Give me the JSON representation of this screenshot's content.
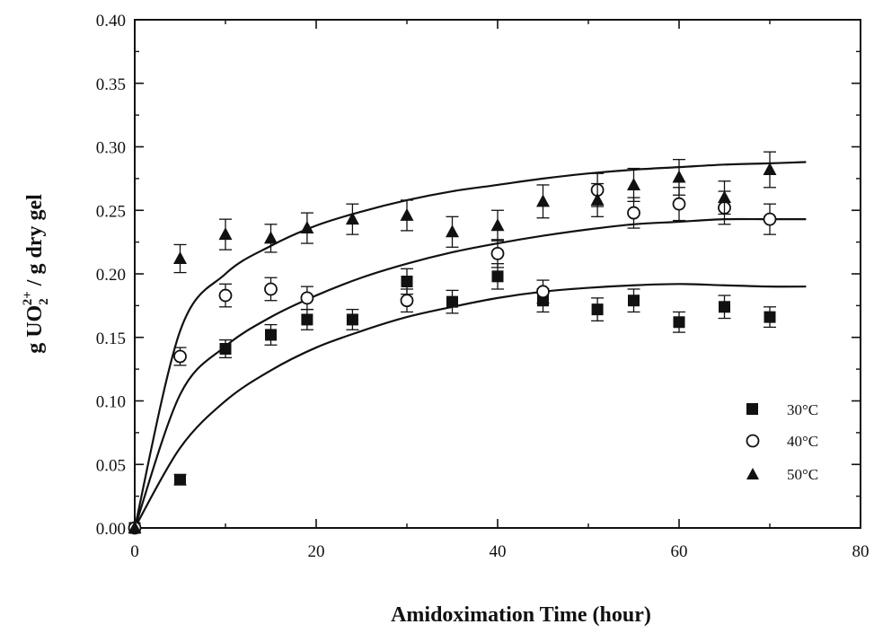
{
  "colors": {
    "ink": "#111111",
    "background": "#ffffff"
  },
  "axes": {
    "xlabel": "Amidoximation Time (hour)",
    "ylabel_prefix": "g UO",
    "ylabel_sub": "2",
    "ylabel_sup": "2+",
    "ylabel_suffix": " / g dry gel",
    "x_ticks": [
      "0",
      "20",
      "40",
      "60",
      "80"
    ],
    "y_ticks": [
      "0.00",
      "0.05",
      "0.10",
      "0.15",
      "0.20",
      "0.25",
      "0.30",
      "0.35",
      "0.40"
    ]
  },
  "chart_data": {
    "type": "scatter",
    "title": "",
    "xlabel": "Amidoximation Time (hour)",
    "ylabel": "g UO2 2+ / g dry gel",
    "xlim": [
      0,
      80
    ],
    "ylim": [
      0.0,
      0.4
    ],
    "x_major_ticks": [
      0,
      20,
      40,
      60,
      80
    ],
    "y_major_ticks": [
      0.0,
      0.05,
      0.1,
      0.15,
      0.2,
      0.25,
      0.3,
      0.35,
      0.4
    ],
    "grid": false,
    "legend": {
      "position": "bottom-right"
    },
    "series": [
      {
        "name": "30°C",
        "marker": "filled-square",
        "x": [
          0,
          5,
          10,
          15,
          19,
          24,
          30,
          35,
          40,
          45,
          51,
          55,
          60,
          65,
          70
        ],
        "y": [
          0.0,
          0.038,
          0.141,
          0.152,
          0.164,
          0.164,
          0.194,
          0.178,
          0.198,
          0.179,
          0.172,
          0.179,
          0.162,
          0.174,
          0.166
        ],
        "error": [
          0.0,
          0.004,
          0.007,
          0.008,
          0.008,
          0.008,
          0.01,
          0.009,
          0.01,
          0.009,
          0.009,
          0.009,
          0.008,
          0.009,
          0.008
        ]
      },
      {
        "name": "40°C",
        "marker": "open-circle",
        "x": [
          0,
          5,
          10,
          15,
          19,
          30,
          40,
          45,
          51,
          55,
          60,
          65,
          70
        ],
        "y": [
          0.0,
          0.135,
          0.183,
          0.188,
          0.181,
          0.179,
          0.216,
          0.186,
          0.266,
          0.248,
          0.255,
          0.252,
          0.243
        ],
        "error": [
          0.0,
          0.007,
          0.009,
          0.009,
          0.009,
          0.009,
          0.011,
          0.009,
          0.013,
          0.012,
          0.013,
          0.013,
          0.012
        ]
      },
      {
        "name": "50°C",
        "marker": "filled-triangle",
        "x": [
          0,
          5,
          10,
          15,
          19,
          24,
          30,
          35,
          40,
          45,
          51,
          55,
          60,
          65,
          70
        ],
        "y": [
          0.0,
          0.212,
          0.231,
          0.228,
          0.236,
          0.243,
          0.246,
          0.233,
          0.238,
          0.257,
          0.258,
          0.27,
          0.276,
          0.26,
          0.282
        ],
        "error": [
          0.0,
          0.011,
          0.012,
          0.011,
          0.012,
          0.012,
          0.012,
          0.012,
          0.012,
          0.013,
          0.013,
          0.013,
          0.014,
          0.013,
          0.014
        ]
      }
    ],
    "fit_curves": [
      {
        "series": "30°C",
        "x": [
          0,
          5,
          10,
          15,
          20,
          25,
          30,
          35,
          40,
          45,
          50,
          55,
          60,
          65,
          70,
          74
        ],
        "y": [
          0.0,
          0.063,
          0.1,
          0.124,
          0.142,
          0.155,
          0.166,
          0.174,
          0.181,
          0.186,
          0.189,
          0.191,
          0.192,
          0.191,
          0.19,
          0.19
        ]
      },
      {
        "series": "40°C",
        "x": [
          0,
          5,
          10,
          15,
          20,
          25,
          30,
          35,
          40,
          45,
          50,
          55,
          60,
          65,
          70,
          74
        ],
        "y": [
          0.0,
          0.105,
          0.143,
          0.166,
          0.183,
          0.197,
          0.208,
          0.217,
          0.224,
          0.23,
          0.235,
          0.239,
          0.241,
          0.243,
          0.243,
          0.243
        ]
      },
      {
        "series": "50°C",
        "x": [
          0,
          5,
          10,
          15,
          20,
          25,
          30,
          35,
          40,
          45,
          50,
          55,
          60,
          65,
          70,
          74
        ],
        "y": [
          0.0,
          0.155,
          0.2,
          0.222,
          0.238,
          0.249,
          0.258,
          0.265,
          0.27,
          0.275,
          0.279,
          0.282,
          0.284,
          0.286,
          0.287,
          0.288
        ]
      }
    ]
  }
}
